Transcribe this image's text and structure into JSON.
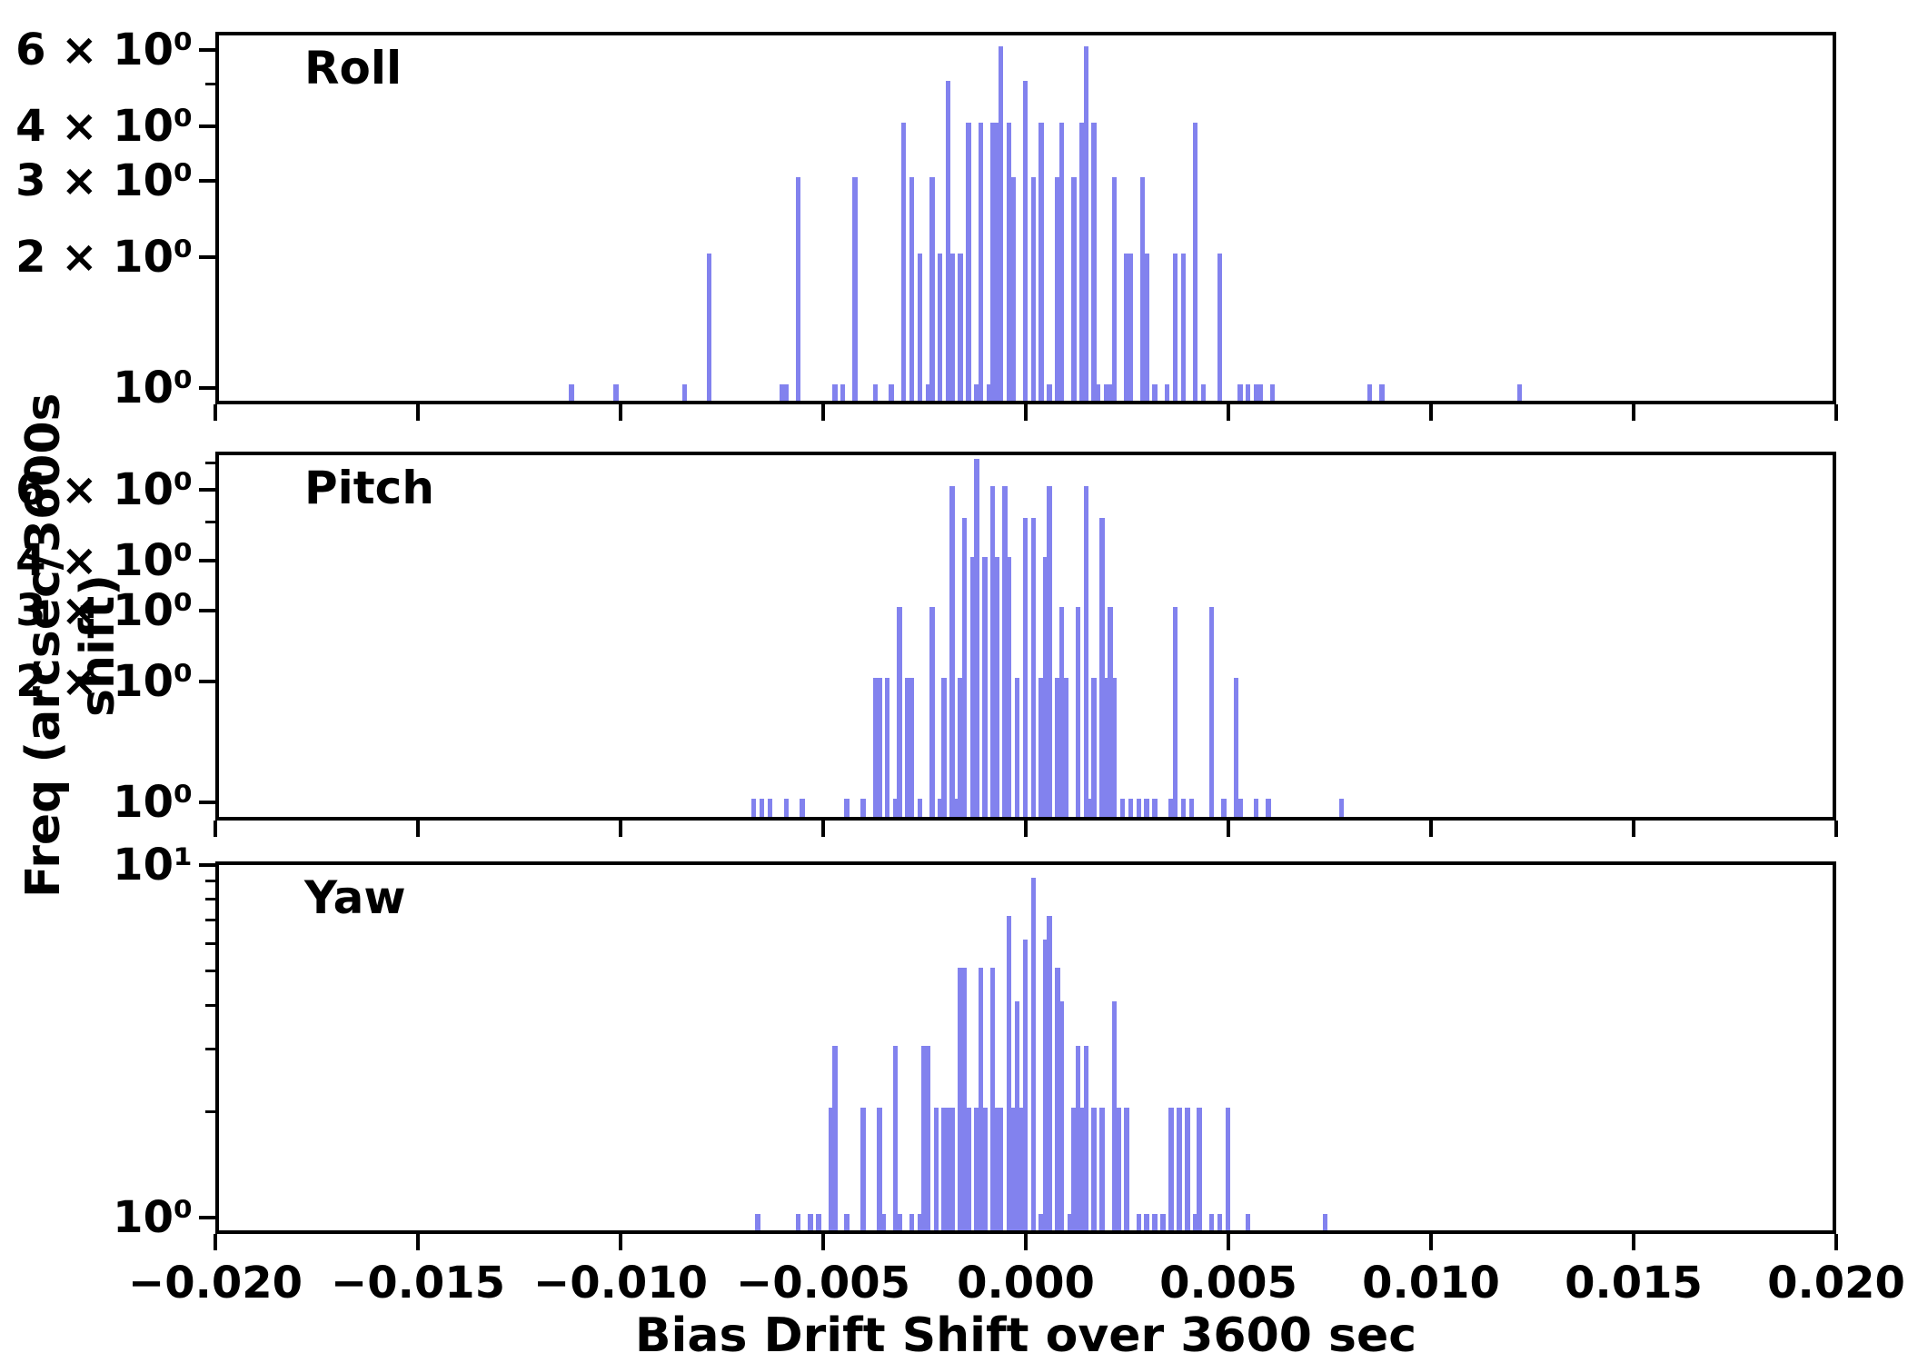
{
  "xlabel": "Bias Drift Shift over 3600 sec",
  "ylabel": "Freq (arcsec/3600s shift)",
  "colors": {
    "bar": "#8282ee",
    "axis": "#000000",
    "background": "#ffffff"
  },
  "x_ticks": [
    {
      "v": -0.02,
      "label": "−0.020"
    },
    {
      "v": -0.015,
      "label": "−0.015"
    },
    {
      "v": -0.01,
      "label": "−0.010"
    },
    {
      "v": -0.005,
      "label": "−0.005"
    },
    {
      "v": 0.0,
      "label": "0.000"
    },
    {
      "v": 0.005,
      "label": "0.005"
    },
    {
      "v": 0.01,
      "label": "0.010"
    },
    {
      "v": 0.015,
      "label": "0.015"
    },
    {
      "v": 0.02,
      "label": "0.020"
    }
  ],
  "chart_data": [
    {
      "type": "bar",
      "title": "Roll",
      "xlim": [
        -0.02,
        0.02
      ],
      "ylim": [
        0.92,
        6.6
      ],
      "yscale": "log",
      "bin_width": 0.00015,
      "yticks_major": [
        {
          "v": 1,
          "label": "10⁰"
        },
        {
          "v": 2,
          "label": "2 × 10⁰"
        },
        {
          "v": 3,
          "label": "3 × 10⁰"
        },
        {
          "v": 4,
          "label": "4 × 10⁰"
        },
        {
          "v": 6,
          "label": "6 × 10⁰"
        }
      ],
      "yticks_minor": [
        5,
        7
      ],
      "bars": [
        [
          -0.0112,
          1
        ],
        [
          -0.0101,
          1
        ],
        [
          -0.0084,
          1
        ],
        [
          -0.0078,
          2
        ],
        [
          -0.006,
          1
        ],
        [
          -0.0059,
          1
        ],
        [
          -0.0056,
          3
        ],
        [
          -0.0047,
          1
        ],
        [
          -0.0045,
          1
        ],
        [
          -0.0042,
          3
        ],
        [
          -0.0037,
          1
        ],
        [
          -0.0033,
          1
        ],
        [
          -0.003,
          4
        ],
        [
          -0.0028,
          3
        ],
        [
          -0.0026,
          2
        ],
        [
          -0.0024,
          1
        ],
        [
          -0.0023,
          3
        ],
        [
          -0.0021,
          2
        ],
        [
          -0.0019,
          5
        ],
        [
          -0.0018,
          2
        ],
        [
          -0.0016,
          2
        ],
        [
          -0.0014,
          4
        ],
        [
          -0.0012,
          1
        ],
        [
          -0.0011,
          4
        ],
        [
          -0.0009,
          1
        ],
        [
          -0.0008,
          4
        ],
        [
          -0.0007,
          4
        ],
        [
          -0.0006,
          6
        ],
        [
          -0.0004,
          4
        ],
        [
          -0.0003,
          3
        ],
        [
          0.0,
          5
        ],
        [
          0.0002,
          3
        ],
        [
          0.0004,
          4
        ],
        [
          0.0006,
          1
        ],
        [
          0.0008,
          3
        ],
        [
          0.0009,
          4
        ],
        [
          0.0012,
          3
        ],
        [
          0.0014,
          4
        ],
        [
          0.0015,
          6
        ],
        [
          0.0017,
          4
        ],
        [
          0.0018,
          1
        ],
        [
          0.002,
          1
        ],
        [
          0.0021,
          1
        ],
        [
          0.0022,
          3
        ],
        [
          0.0025,
          2
        ],
        [
          0.0026,
          2
        ],
        [
          0.0029,
          3
        ],
        [
          0.003,
          2
        ],
        [
          0.0032,
          1
        ],
        [
          0.0035,
          1
        ],
        [
          0.0037,
          2
        ],
        [
          0.0039,
          2
        ],
        [
          0.0042,
          4
        ],
        [
          0.0044,
          1
        ],
        [
          0.0048,
          2
        ],
        [
          0.0053,
          1
        ],
        [
          0.0055,
          1
        ],
        [
          0.0057,
          1
        ],
        [
          0.0058,
          1
        ],
        [
          0.0061,
          1
        ],
        [
          0.0085,
          1
        ],
        [
          0.0088,
          1
        ],
        [
          0.0122,
          1
        ]
      ]
    },
    {
      "type": "bar",
      "title": "Pitch",
      "xlim": [
        -0.02,
        0.02
      ],
      "ylim": [
        0.9,
        7.5
      ],
      "yscale": "log",
      "bin_width": 0.00015,
      "yticks_major": [
        {
          "v": 1,
          "label": "10⁰"
        },
        {
          "v": 2,
          "label": "2 × 10⁰"
        },
        {
          "v": 3,
          "label": "3 × 10⁰"
        },
        {
          "v": 4,
          "label": "4 × 10⁰"
        },
        {
          "v": 6,
          "label": "6 × 10⁰"
        }
      ],
      "yticks_minor": [
        5,
        7
      ],
      "bars": [
        [
          -0.0067,
          1
        ],
        [
          -0.0065,
          1
        ],
        [
          -0.0063,
          1
        ],
        [
          -0.0059,
          1
        ],
        [
          -0.0055,
          1
        ],
        [
          -0.0044,
          1
        ],
        [
          -0.004,
          1
        ],
        [
          -0.0037,
          2
        ],
        [
          -0.0036,
          2
        ],
        [
          -0.0034,
          2
        ],
        [
          -0.0032,
          1
        ],
        [
          -0.0031,
          3
        ],
        [
          -0.0029,
          2
        ],
        [
          -0.0028,
          2
        ],
        [
          -0.0026,
          1
        ],
        [
          -0.0023,
          3
        ],
        [
          -0.0021,
          1
        ],
        [
          -0.002,
          2
        ],
        [
          -0.0018,
          6
        ],
        [
          -0.0017,
          1
        ],
        [
          -0.0016,
          2
        ],
        [
          -0.0015,
          5
        ],
        [
          -0.0013,
          4
        ],
        [
          -0.0012,
          7
        ],
        [
          -0.001,
          4
        ],
        [
          -0.0008,
          6
        ],
        [
          -0.0007,
          4
        ],
        [
          -0.0005,
          6
        ],
        [
          -0.0004,
          4
        ],
        [
          -0.0002,
          2
        ],
        [
          0.0,
          5
        ],
        [
          0.0002,
          5
        ],
        [
          0.0004,
          2
        ],
        [
          0.0005,
          4
        ],
        [
          0.0006,
          6
        ],
        [
          0.0008,
          2
        ],
        [
          0.0009,
          3
        ],
        [
          0.001,
          2
        ],
        [
          0.0013,
          3
        ],
        [
          0.0015,
          6
        ],
        [
          0.0016,
          1
        ],
        [
          0.0017,
          2
        ],
        [
          0.0019,
          5
        ],
        [
          0.002,
          2
        ],
        [
          0.0021,
          3
        ],
        [
          0.0022,
          2
        ],
        [
          0.0024,
          1
        ],
        [
          0.0026,
          1
        ],
        [
          0.0028,
          1
        ],
        [
          0.003,
          1
        ],
        [
          0.0032,
          1
        ],
        [
          0.0036,
          1
        ],
        [
          0.0037,
          3
        ],
        [
          0.0039,
          1
        ],
        [
          0.0041,
          1
        ],
        [
          0.0046,
          3
        ],
        [
          0.0049,
          1
        ],
        [
          0.0052,
          2
        ],
        [
          0.0053,
          1
        ],
        [
          0.0057,
          1
        ],
        [
          0.006,
          1
        ],
        [
          0.0078,
          1
        ]
      ]
    },
    {
      "type": "bar",
      "title": "Yaw",
      "xlim": [
        -0.02,
        0.02
      ],
      "ylim": [
        0.9,
        10.25
      ],
      "yscale": "log",
      "bin_width": 0.00015,
      "yticks_major": [
        {
          "v": 1,
          "label": "10⁰"
        },
        {
          "v": 10,
          "label": "10¹"
        }
      ],
      "yticks_minor": [
        2,
        3,
        4,
        5,
        6,
        7,
        8,
        9
      ],
      "bars": [
        [
          -0.0066,
          1
        ],
        [
          -0.0056,
          1
        ],
        [
          -0.0053,
          1
        ],
        [
          -0.0051,
          1
        ],
        [
          -0.0048,
          2
        ],
        [
          -0.0047,
          3
        ],
        [
          -0.0044,
          1
        ],
        [
          -0.004,
          2
        ],
        [
          -0.0036,
          2
        ],
        [
          -0.0035,
          1
        ],
        [
          -0.0032,
          3
        ],
        [
          -0.0031,
          1
        ],
        [
          -0.0028,
          1
        ],
        [
          -0.0026,
          1
        ],
        [
          -0.0025,
          3
        ],
        [
          -0.0024,
          3
        ],
        [
          -0.0022,
          2
        ],
        [
          -0.002,
          2
        ],
        [
          -0.0019,
          2
        ],
        [
          -0.0018,
          2
        ],
        [
          -0.0016,
          5
        ],
        [
          -0.0015,
          5
        ],
        [
          -0.0014,
          2
        ],
        [
          -0.0012,
          2
        ],
        [
          -0.0011,
          5
        ],
        [
          -0.001,
          2
        ],
        [
          -0.0008,
          5
        ],
        [
          -0.0007,
          2
        ],
        [
          -0.0006,
          2
        ],
        [
          -0.0004,
          7
        ],
        [
          -0.0003,
          2
        ],
        [
          -0.0002,
          4
        ],
        [
          -0.0001,
          2
        ],
        [
          0.0,
          6
        ],
        [
          0.0002,
          9
        ],
        [
          0.0004,
          1
        ],
        [
          0.0005,
          6
        ],
        [
          0.0006,
          7
        ],
        [
          0.0008,
          5
        ],
        [
          0.0009,
          4
        ],
        [
          0.0011,
          1
        ],
        [
          0.0012,
          2
        ],
        [
          0.0013,
          3
        ],
        [
          0.0014,
          2
        ],
        [
          0.0015,
          3
        ],
        [
          0.0017,
          2
        ],
        [
          0.0019,
          2
        ],
        [
          0.0022,
          4
        ],
        [
          0.0023,
          2
        ],
        [
          0.0025,
          2
        ],
        [
          0.0028,
          1
        ],
        [
          0.003,
          1
        ],
        [
          0.0032,
          1
        ],
        [
          0.0034,
          1
        ],
        [
          0.0036,
          2
        ],
        [
          0.0038,
          2
        ],
        [
          0.004,
          2
        ],
        [
          0.0042,
          1
        ],
        [
          0.0043,
          2
        ],
        [
          0.0046,
          1
        ],
        [
          0.0048,
          1
        ],
        [
          0.005,
          2
        ],
        [
          0.0055,
          1
        ],
        [
          0.0074,
          1
        ]
      ]
    }
  ]
}
